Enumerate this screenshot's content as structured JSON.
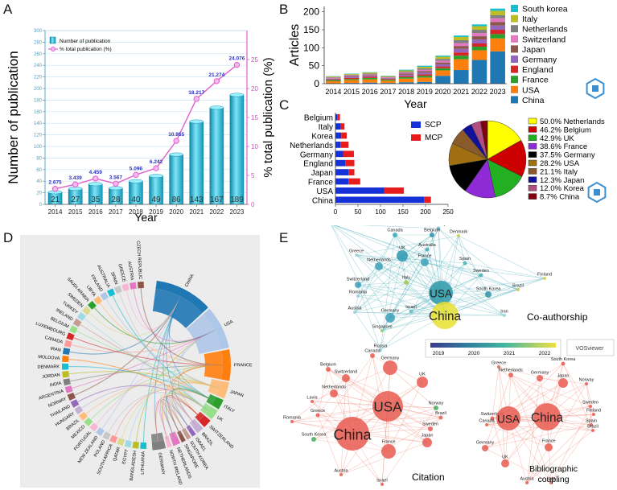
{
  "panel_letters": {
    "a": "A",
    "b": "B",
    "c": "C",
    "d": "D",
    "e": "E"
  },
  "colors": {
    "bar_cyan": "#22b8d6",
    "pink": "#e060d0",
    "scp": "#1432d8",
    "mcp": "#e81c1c",
    "china": "#1f77b4",
    "usa": "#ff7f0e",
    "france": "#2ca02c",
    "england": "#d62728",
    "germany": "#9467bd",
    "japan": "#8c564b",
    "switzerland": "#e377c2",
    "netherlands": "#7f7f7f",
    "italy": "#bcbd22",
    "south_korea": "#17becf",
    "logo": "#3b8fd0"
  },
  "chart_data": [
    {
      "id": "A",
      "type": "bar",
      "title": "",
      "xlabel": "Year",
      "ylabel": "Number of publication",
      "y2label": "% total publication (%)",
      "categories": [
        "2014",
        "2015",
        "2016",
        "2017",
        "2018",
        "2019",
        "2020",
        "2021",
        "2022",
        "2023"
      ],
      "series": [
        {
          "name": "Number of publication",
          "values": [
            21,
            27,
            35,
            28,
            40,
            49,
            86,
            143,
            167,
            189
          ]
        },
        {
          "name": "% total publication (%)",
          "axis": "right",
          "values": [
            2.675,
            3.439,
            4.459,
            3.567,
            5.096,
            6.242,
            10.955,
            18.217,
            21.274,
            24.076
          ]
        }
      ],
      "bar_labels": [
        "21",
        "27",
        "35",
        "28",
        "40",
        "49",
        "86",
        "143",
        "167",
        "189"
      ],
      "line_labels": [
        "2.675",
        "3.439",
        "4.459",
        "3.567",
        "5.096",
        "6.242",
        "10.955",
        "18.217",
        "21.274",
        "24.076"
      ],
      "ylim": [
        0,
        300
      ],
      "yticks": [
        "0",
        "20",
        "40",
        "60",
        "80",
        "100",
        "120",
        "140",
        "160",
        "180",
        "200",
        "220",
        "240",
        "260",
        "280",
        "300"
      ],
      "y2lim": [
        0,
        30
      ],
      "y2ticks": [
        "0",
        "5",
        "10",
        "15",
        "20",
        "25"
      ],
      "legend": [
        "Number of publication",
        "% total publication (%)"
      ],
      "legend_position": "top-center"
    },
    {
      "id": "B",
      "type": "bar",
      "stacked": true,
      "xlabel": "Year",
      "ylabel": "Articles",
      "categories": [
        "2014",
        "2015",
        "2016",
        "2017",
        "2018",
        "2019",
        "2020",
        "2021",
        "2022",
        "2023"
      ],
      "series": [
        {
          "name": "China",
          "values": [
            1,
            2,
            3,
            2,
            4,
            5,
            22,
            38,
            66,
            90
          ]
        },
        {
          "name": "USA",
          "values": [
            6,
            8,
            9,
            6,
            10,
            12,
            15,
            30,
            27,
            36
          ]
        },
        {
          "name": "France",
          "values": [
            3,
            3,
            4,
            3,
            4,
            5,
            6,
            10,
            10,
            12
          ]
        },
        {
          "name": "England",
          "values": [
            2,
            3,
            3,
            2,
            3,
            4,
            5,
            9,
            9,
            12
          ]
        },
        {
          "name": "Germany",
          "values": [
            2,
            3,
            3,
            2,
            4,
            5,
            6,
            10,
            11,
            12
          ]
        },
        {
          "name": "Japan",
          "values": [
            1,
            2,
            2,
            1,
            3,
            4,
            5,
            8,
            9,
            10
          ]
        },
        {
          "name": "Switzerland",
          "values": [
            2,
            2,
            2,
            2,
            3,
            4,
            5,
            8,
            9,
            10
          ]
        },
        {
          "name": "Netherlands",
          "values": [
            1,
            2,
            2,
            1,
            3,
            4,
            5,
            8,
            9,
            9
          ]
        },
        {
          "name": "Italy",
          "values": [
            2,
            2,
            3,
            2,
            3,
            4,
            6,
            9,
            10,
            12
          ]
        },
        {
          "name": "South korea",
          "values": [
            1,
            1,
            1,
            1,
            2,
            3,
            3,
            4,
            5,
            6
          ]
        }
      ],
      "legend": [
        "South korea",
        "Italy",
        "Netherlands",
        "Switzerland",
        "Japan",
        "Germany",
        "England",
        "France",
        "USA",
        "China"
      ],
      "ylim": [
        0,
        215
      ],
      "yticks": [
        "0",
        "50",
        "100",
        "150",
        "200"
      ],
      "legend_position": "right"
    },
    {
      "id": "C-bar",
      "type": "bar",
      "orientation": "horizontal",
      "stacked": true,
      "categories": [
        "China",
        "USA",
        "France",
        "Japan",
        "England",
        "Germany",
        "Netherlands",
        "Korea",
        "Italy",
        "Belgium"
      ],
      "series": [
        {
          "name": "SCP",
          "values": [
            197,
            108,
            29,
            29,
            22,
            17,
            11,
            13,
            12,
            4
          ]
        },
        {
          "name": "MCP",
          "values": [
            15,
            44,
            26,
            13,
            20,
            24,
            18,
            12,
            8,
            6
          ]
        }
      ],
      "xlim": [
        0,
        250
      ],
      "xticks": [
        "0",
        "50",
        "100",
        "150",
        "200",
        "250"
      ],
      "legend": [
        "SCP",
        "MCP"
      ],
      "legend_position": "right"
    },
    {
      "id": "C-pie",
      "type": "pie",
      "labels": [
        "Netherlands",
        "Belgium",
        "UK",
        "France",
        "Germany",
        "USA",
        "Italy",
        "Japan",
        "Korea",
        "China"
      ],
      "values": [
        50.0,
        46.2,
        42.9,
        38.6,
        37.5,
        28.2,
        21.1,
        12.3,
        12.0,
        8.7
      ],
      "legend": [
        "50.0% Netherlands",
        "46.2% Belgium",
        "42.9% UK",
        "38.6% France",
        "37.5% Germany",
        "28.2% USA",
        "21.1% Italy",
        "12.3% Japan",
        "12.0% Korea",
        "8.7% China"
      ],
      "slice_colors": [
        "#ffff00",
        "#cc0000",
        "#22b022",
        "#8e2ad6",
        "#000000",
        "#a07010",
        "#8b5a2b",
        "#111199",
        "#b05080",
        "#800010"
      ]
    }
  ],
  "chord": {
    "labels_left": [
      "LITHUANIA",
      "BANGLADESH",
      "EGYPT",
      "QATAR",
      "SOUTH AFRICA",
      "POLAND",
      "NEW ZEALAND",
      "PORTUGAL",
      "MEXICO",
      "BRAZIL",
      "HUNGARY",
      "THAILAND",
      "NORWAY",
      "ARGENTINA",
      "INDIA",
      "JORDAN",
      "DENMARK",
      "MOLDOVA",
      "IRAN",
      "CANADA",
      "LUXEMBOURG",
      "BELGIUM",
      "IRELAND",
      "TURKEY",
      "SWEDEN",
      "SAUDI ARABIA",
      "LIBYA",
      "FINLAND",
      "AUSTRALIA",
      "SPAIN",
      "GREECE",
      "AUSTRIA",
      "CZECH REPUBLIC"
    ],
    "labels_right": [
      "CHINA",
      "USA",
      "FRANCE",
      "JAPAN",
      "ITALY",
      "UK",
      "SWITZERLAND",
      "BRAZIL",
      "ISRAEL",
      "SOUTH KOREA",
      "SINGAPORE",
      "NETHERLANDS",
      "NORTH IRELAND",
      "GERMANY"
    ]
  },
  "networks": {
    "coauthorship_title": "Co-authorship",
    "citation_title": "Citation",
    "bibliographic_title": "Bibliographic coupling",
    "brand": "VOSviewer",
    "colorbar_ticks": [
      "2019",
      "2020",
      "2021",
      "2022"
    ],
    "coauthorship_nodes": [
      "Norway",
      "Belgium",
      "Denmark",
      "Canada",
      "Lavia",
      "Australia",
      "Greece",
      "UK",
      "France",
      "Netherlands",
      "Spain",
      "Switzerland",
      "Sweden",
      "Italy",
      "Finland",
      "USA",
      "Brazil",
      "Romania",
      "South Korea",
      "Austria",
      "Germany",
      "Iran",
      "Israel",
      "China",
      "Singapore",
      "Russia"
    ],
    "citation_nodes": [
      "Canada",
      "Belgium",
      "Germany",
      "Switzerland",
      "UK",
      "Netherlands",
      "Lavia",
      "Greece",
      "USA",
      "Romania",
      "Norway",
      "Brazil",
      "South Korea",
      "Sweden",
      "China",
      "Japan",
      "France",
      "Austria",
      "Israel"
    ],
    "bibliographic_nodes": [
      "Greece",
      "South Korea",
      "Netherlands",
      "Germany",
      "Japan",
      "Norway",
      "Sweden",
      "Finland",
      "Switzerland",
      "Canada",
      "Spain",
      "Brazil",
      "USA",
      "China",
      "Germany",
      "France",
      "UK",
      "Austria",
      "Italy"
    ]
  }
}
